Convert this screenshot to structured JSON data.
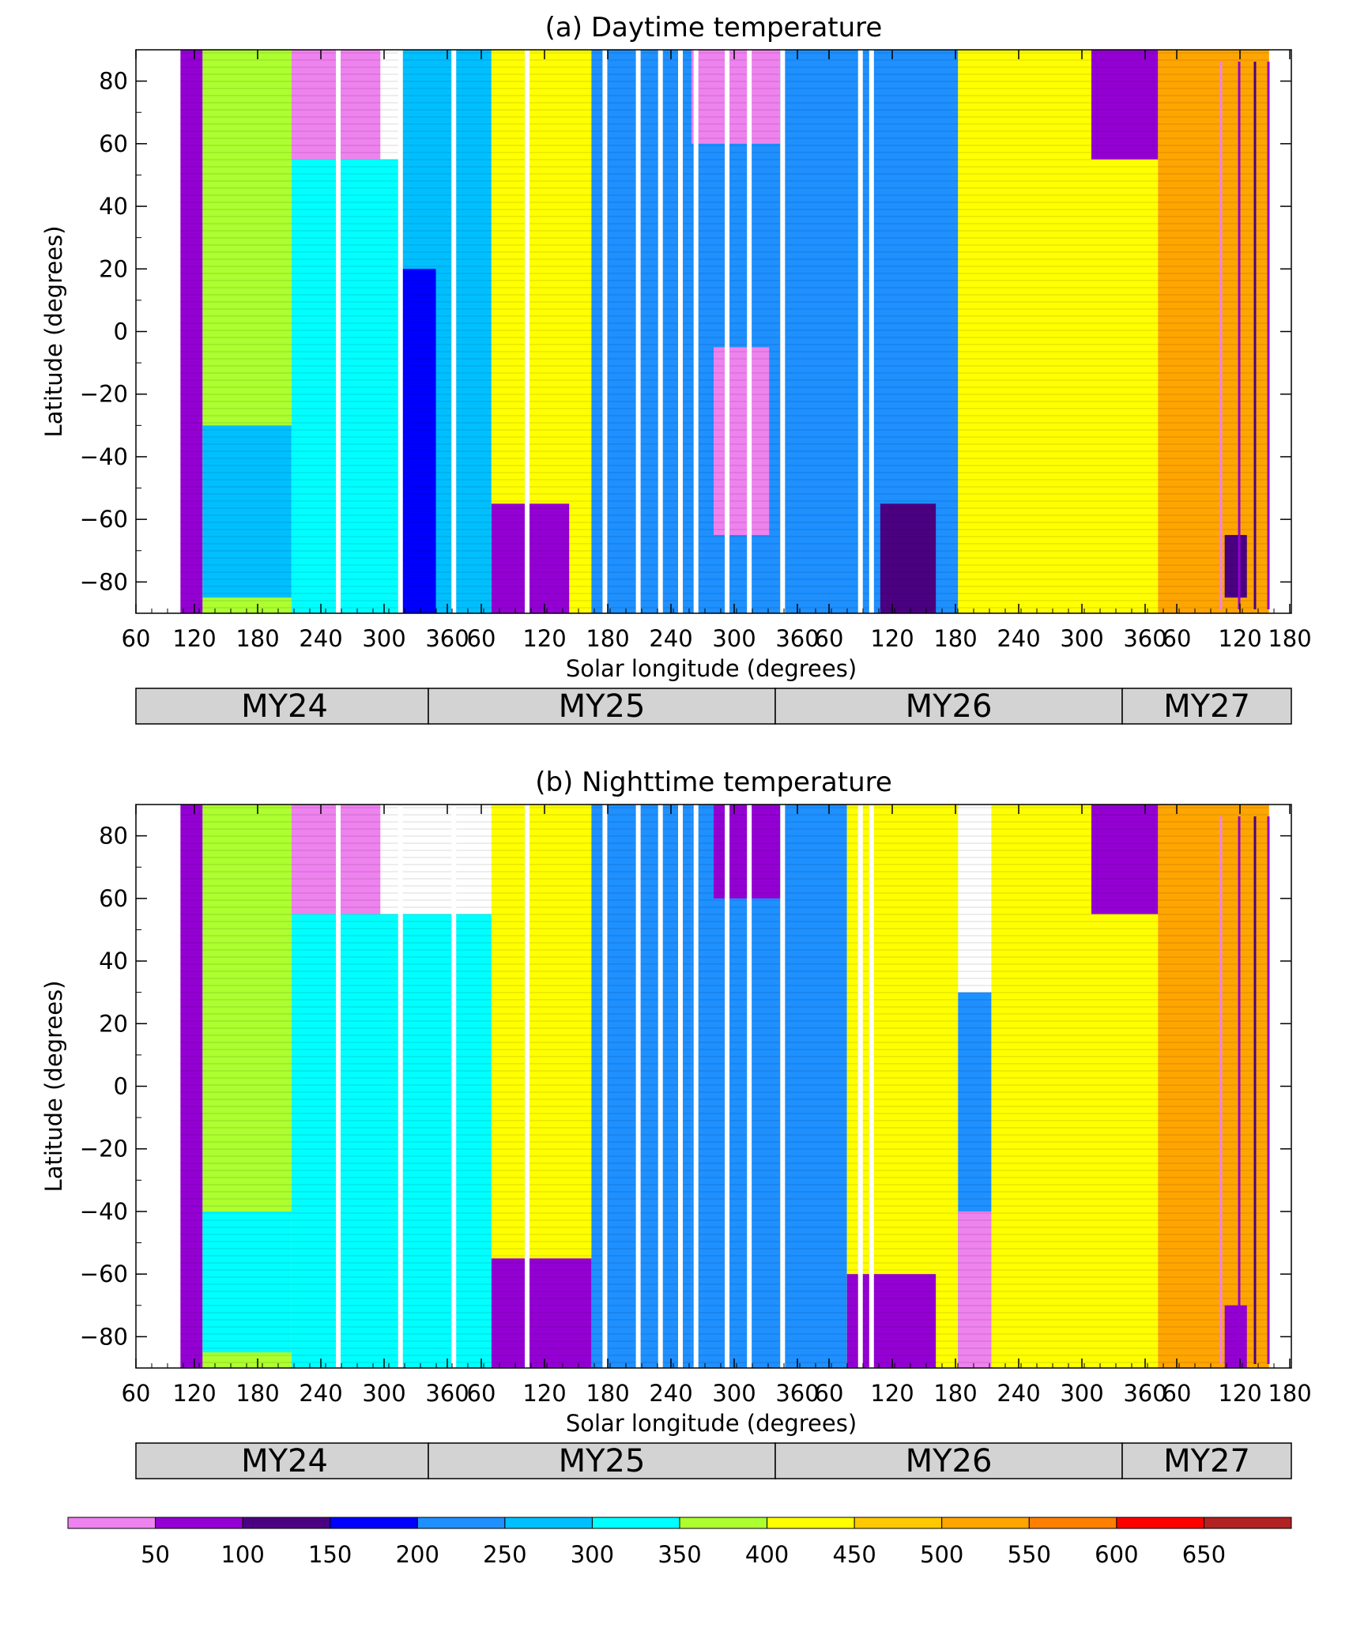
{
  "chart_data": [
    {
      "type": "heatmap",
      "title": "(a) Daytime temperature",
      "xlabel": "Solar longitude (degrees)",
      "ylabel": "Latitude (degrees)",
      "xticks": [
        "60",
        "120",
        "180",
        "240",
        "300",
        "360",
        "60",
        "120",
        "180",
        "240",
        "300",
        "360",
        "60",
        "120",
        "180",
        "240",
        "300",
        "360",
        "60",
        "120",
        "180"
      ],
      "yticks": [
        "80",
        "60",
        "40",
        "20",
        "0",
        "−20",
        "−40",
        "−60",
        "−80"
      ],
      "ylim": [
        -90,
        90
      ],
      "mars_years": [
        "MY24",
        "MY25",
        "MY26",
        "MY27"
      ],
      "grid": false,
      "regions": [
        {
          "ls": [
            100,
            120
          ],
          "lat": [
            -90,
            90
          ],
          "value": 50
        },
        {
          "ls": [
            120,
            200
          ],
          "lat": [
            -90,
            90
          ],
          "value": 380
        },
        {
          "ls": [
            120,
            200
          ],
          "lat": [
            -85,
            -30
          ],
          "value": 280
        },
        {
          "ls": [
            200,
            280
          ],
          "lat": [
            55,
            90
          ],
          "value": 40
        },
        {
          "ls": [
            200,
            300
          ],
          "lat": [
            -90,
            55
          ],
          "value": 330
        },
        {
          "ls": [
            300,
            380
          ],
          "lat": [
            -90,
            90
          ],
          "value": 290
        },
        {
          "ls": [
            300,
            330
          ],
          "lat": [
            -90,
            20
          ],
          "value": 150
        },
        {
          "ls": [
            380,
            470
          ],
          "lat": [
            -90,
            90
          ],
          "value": 420
        },
        {
          "ls": [
            380,
            450
          ],
          "lat": [
            -90,
            -55
          ],
          "value": 50
        },
        {
          "ls": [
            470,
            640
          ],
          "lat": [
            -90,
            90
          ],
          "value": 210
        },
        {
          "ls": [
            560,
            640
          ],
          "lat": [
            60,
            90
          ],
          "value": 40
        },
        {
          "ls": [
            580,
            630
          ],
          "lat": [
            -65,
            -5
          ],
          "value": 40
        },
        {
          "ls": [
            640,
            800
          ],
          "lat": [
            -90,
            90
          ],
          "value": 220
        },
        {
          "ls": [
            730,
            780
          ],
          "lat": [
            -90,
            -55
          ],
          "value": 100
        },
        {
          "ls": [
            800,
            980
          ],
          "lat": [
            -90,
            90
          ],
          "value": 420
        },
        {
          "ls": [
            920,
            980
          ],
          "lat": [
            55,
            90
          ],
          "value": 60
        },
        {
          "ls": [
            980,
            1080
          ],
          "lat": [
            -90,
            90
          ],
          "value": 510
        },
        {
          "ls": [
            1040,
            1060
          ],
          "lat": [
            -85,
            -65
          ],
          "value": 120
        }
      ]
    },
    {
      "type": "heatmap",
      "title": "(b) Nighttime temperature",
      "xlabel": "Solar longitude (degrees)",
      "ylabel": "Latitude (degrees)",
      "xticks": [
        "60",
        "120",
        "180",
        "240",
        "300",
        "360",
        "60",
        "120",
        "180",
        "240",
        "300",
        "360",
        "60",
        "120",
        "180",
        "240",
        "300",
        "360",
        "60",
        "120",
        "180"
      ],
      "yticks": [
        "80",
        "60",
        "40",
        "20",
        "0",
        "−20",
        "−40",
        "−60",
        "−80"
      ],
      "ylim": [
        -90,
        90
      ],
      "mars_years": [
        "MY24",
        "MY25",
        "MY26",
        "MY27"
      ],
      "grid": false,
      "regions": [
        {
          "ls": [
            100,
            120
          ],
          "lat": [
            -90,
            90
          ],
          "value": 50
        },
        {
          "ls": [
            120,
            200
          ],
          "lat": [
            -90,
            90
          ],
          "value": 380
        },
        {
          "ls": [
            120,
            200
          ],
          "lat": [
            -85,
            -40
          ],
          "value": 300
        },
        {
          "ls": [
            200,
            280
          ],
          "lat": [
            55,
            90
          ],
          "value": 40
        },
        {
          "ls": [
            200,
            380
          ],
          "lat": [
            -90,
            55
          ],
          "value": 320
        },
        {
          "ls": [
            380,
            470
          ],
          "lat": [
            -90,
            90
          ],
          "value": 420
        },
        {
          "ls": [
            380,
            470
          ],
          "lat": [
            -90,
            -55
          ],
          "value": 50
        },
        {
          "ls": [
            470,
            560
          ],
          "lat": [
            -90,
            90
          ],
          "value": 230
        },
        {
          "ls": [
            560,
            640
          ],
          "lat": [
            -90,
            90
          ],
          "value": 200
        },
        {
          "ls": [
            580,
            640
          ],
          "lat": [
            60,
            90
          ],
          "value": 50
        },
        {
          "ls": [
            640,
            700
          ],
          "lat": [
            -90,
            90
          ],
          "value": 230
        },
        {
          "ls": [
            700,
            800
          ],
          "lat": [
            -90,
            90
          ],
          "value": 420
        },
        {
          "ls": [
            700,
            780
          ],
          "lat": [
            -90,
            -60
          ],
          "value": 90
        },
        {
          "ls": [
            800,
            830
          ],
          "lat": [
            -90,
            30
          ],
          "value": 200
        },
        {
          "ls": [
            800,
            830
          ],
          "lat": [
            -90,
            -40
          ],
          "value": 40
        },
        {
          "ls": [
            830,
            980
          ],
          "lat": [
            -90,
            90
          ],
          "value": 430
        },
        {
          "ls": [
            920,
            980
          ],
          "lat": [
            55,
            90
          ],
          "value": 60
        },
        {
          "ls": [
            980,
            1080
          ],
          "lat": [
            -90,
            90
          ],
          "value": 500
        },
        {
          "ls": [
            1040,
            1060
          ],
          "lat": [
            -90,
            -70
          ],
          "value": 80
        }
      ]
    }
  ],
  "colorbar": {
    "colors": [
      "#ee82ee",
      "#9400d3",
      "#4b0082",
      "#0000ff",
      "#1e90ff",
      "#00bfff",
      "#00ffff",
      "#adff2f",
      "#ffff00",
      "#ffc800",
      "#ffa500",
      "#ff7f00",
      "#ff0000",
      "#b22222"
    ],
    "labels": [
      "50",
      "100",
      "150",
      "200",
      "250",
      "300",
      "350",
      "400",
      "450",
      "500",
      "550",
      "600",
      "650"
    ]
  }
}
